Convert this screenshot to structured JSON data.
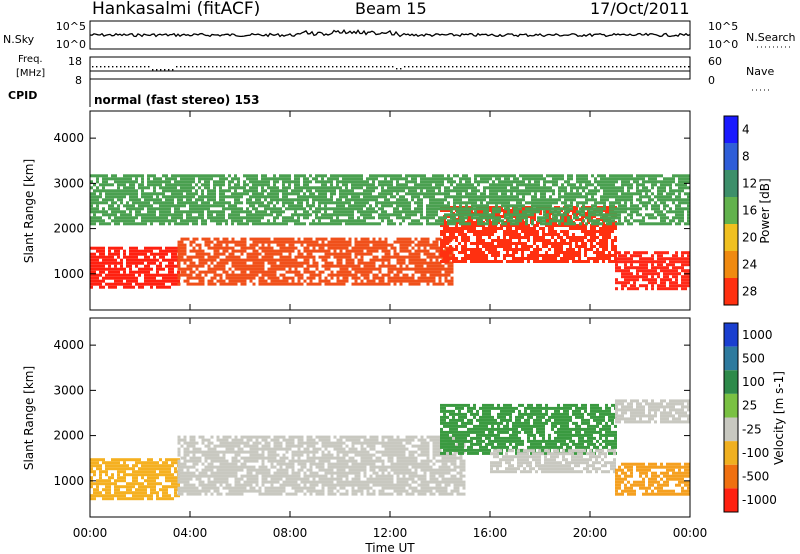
{
  "header": {
    "station": "Hankasalmi (fitACF)",
    "beam": "Beam 15",
    "date": "17/Oct/2011"
  },
  "noise_panel": {
    "left_label": "N.Sky",
    "right_label": "N.Search",
    "left_ticks": [
      "10^5",
      "10^0"
    ],
    "right_ticks": [
      "10^5",
      "10^0"
    ]
  },
  "freq_panel": {
    "left_label": "Freq.",
    "left_unit": "[MHz]",
    "right_label": "Nave",
    "left_ticks": [
      "18",
      "8"
    ],
    "right_ticks": [
      "60",
      "0"
    ]
  },
  "cpid": {
    "label": "CPID",
    "value": "normal (fast stereo) 153"
  },
  "x_axis": {
    "title": "Time UT",
    "ticks": [
      "00:00",
      "04:00",
      "08:00",
      "12:00",
      "16:00",
      "20:00",
      "00:00"
    ]
  },
  "chart_data": [
    {
      "type": "heatmap",
      "name": "power",
      "ylabel": "Slant Range [km]",
      "yticks": [
        1000,
        2000,
        3000,
        4000
      ],
      "ylim": [
        200,
        4600
      ],
      "xlim": [
        0,
        24
      ],
      "colorbar": {
        "label": "Power [dB]",
        "ticks": [
          "4",
          "8",
          "12",
          "16",
          "20",
          "24",
          "28"
        ],
        "colors": [
          "#1a1aff",
          "#2f5ed8",
          "#3d8f6a",
          "#62b24d",
          "#f0c020",
          "#f08a10",
          "#ff3010"
        ]
      },
      "regions": [
        {
          "t0": 0.0,
          "t1": 3.5,
          "r0": 700,
          "r1": 1600,
          "color": "#ff2010"
        },
        {
          "t0": 3.5,
          "t1": 14.5,
          "r0": 800,
          "r1": 1800,
          "color": "#f0501a"
        },
        {
          "t0": 14.0,
          "t1": 21.0,
          "r0": 1300,
          "r1": 2500,
          "color": "#ff3010"
        },
        {
          "t0": 21.0,
          "t1": 24.0,
          "r0": 700,
          "r1": 1500,
          "color": "#ff2818"
        },
        {
          "t0": 0.0,
          "t1": 24.0,
          "r0": 2100,
          "r1": 3200,
          "color": "#4aa050"
        }
      ]
    },
    {
      "type": "heatmap",
      "name": "velocity",
      "ylabel": "Slant Range [km]",
      "yticks": [
        1000,
        2000,
        3000,
        4000
      ],
      "ylim": [
        200,
        4600
      ],
      "xlim": [
        0,
        24
      ],
      "colorbar": {
        "label": "Velocity [m s-1]",
        "ticks": [
          "1000",
          "500",
          "100",
          "25",
          "-25",
          "-100",
          "-500",
          "-1000"
        ],
        "colors": [
          "#1a3fd0",
          "#2e7a9e",
          "#2e8a4a",
          "#7ac143",
          "#c8c8c0",
          "#f0b020",
          "#f07010",
          "#ff2010"
        ]
      },
      "regions": [
        {
          "t0": 0.0,
          "t1": 3.5,
          "r0": 600,
          "r1": 1500,
          "color": "#f5b020"
        },
        {
          "t0": 3.5,
          "t1": 15.0,
          "r0": 700,
          "r1": 2000,
          "color": "#c8c8c0"
        },
        {
          "t0": 14.0,
          "t1": 21.0,
          "r0": 1600,
          "r1": 2700,
          "color": "#3a9a40"
        },
        {
          "t0": 16.0,
          "t1": 21.0,
          "r0": 1200,
          "r1": 1700,
          "color": "#c8c8c0"
        },
        {
          "t0": 21.0,
          "t1": 24.0,
          "r0": 2300,
          "r1": 2800,
          "color": "#c8c8c0"
        },
        {
          "t0": 21.0,
          "t1": 24.0,
          "r0": 700,
          "r1": 1400,
          "color": "#f5a020"
        }
      ]
    }
  ]
}
